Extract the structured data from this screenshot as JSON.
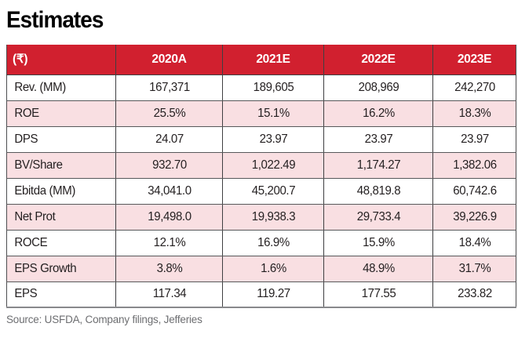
{
  "chart_data": {
    "type": "table",
    "title": "Estimates",
    "currency_note": "(₹)",
    "columns": [
      "(₹)",
      "2020A",
      "2021E",
      "2022E",
      "2023E"
    ],
    "rows": [
      {
        "label": "Rev. (MM)",
        "values": [
          "167,371",
          "189,605",
          "208,969",
          "242,270"
        ]
      },
      {
        "label": "ROE",
        "values": [
          "25.5%",
          "15.1%",
          "16.2%",
          "18.3%"
        ]
      },
      {
        "label": "DPS",
        "values": [
          "24.07",
          "23.97",
          "23.97",
          "23.97"
        ]
      },
      {
        "label": "BV/Share",
        "values": [
          "932.70",
          "1,022.49",
          "1,174.27",
          "1,382.06"
        ]
      },
      {
        "label": "Ebitda (MM)",
        "values": [
          "34,041.0",
          "45,200.7",
          "48,819.8",
          "60,742.6"
        ]
      },
      {
        "label": "Net Prot",
        "values": [
          "19,498.0",
          "19,938.3",
          "29,733.4",
          "39,226.9"
        ]
      },
      {
        "label": "ROCE",
        "values": [
          "12.1%",
          "16.9%",
          "15.9%",
          "18.4%"
        ]
      },
      {
        "label": "EPS Growth",
        "values": [
          "3.8%",
          "1.6%",
          "48.9%",
          "31.7%"
        ]
      },
      {
        "label": "EPS",
        "values": [
          "117.34",
          "119.27",
          "177.55",
          "233.82"
        ]
      }
    ],
    "source": "Source: USFDA, Company filings, Jefferies",
    "layout_hints": {
      "striped_rows": "even rows pink",
      "header_position": "top"
    }
  },
  "colors": {
    "header_red": "#d1202f",
    "stripe_pink": "#f9dfe2",
    "text_dark": "#231f20",
    "source_gray": "#6d6e71"
  }
}
